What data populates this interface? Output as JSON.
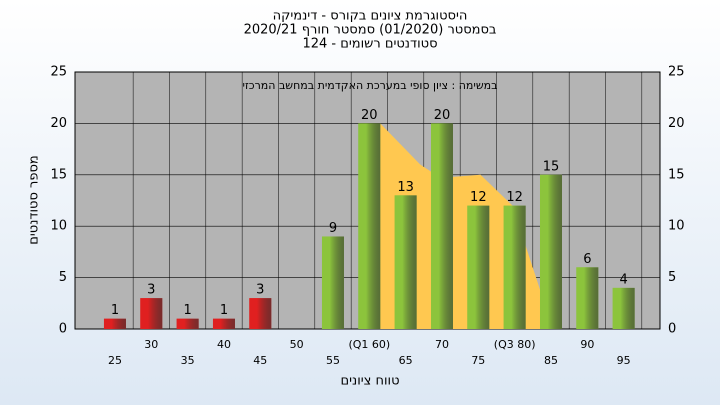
{
  "chart_data": {
    "type": "bar",
    "title": "היסטוגרמת ציונים בקורס - דינמיקה",
    "subtitle": "בסמסטר  (01/2020)  סמסטר חורף 2020/21",
    "subtitle2": "סטודנטים רשומים - 124",
    "annotation": "במשימה : ציון סופי במערכת האקדמית במחשב המרכזי",
    "x_label": "טווח ציונים",
    "y_label": "מספר סטודנטים",
    "x": [
      25,
      30,
      35,
      40,
      45,
      50,
      55,
      60,
      65,
      70,
      75,
      80,
      85,
      90,
      95
    ],
    "values": [
      1,
      3,
      1,
      1,
      3,
      0,
      9,
      20,
      13,
      20,
      12,
      12,
      15,
      6,
      4
    ],
    "colors": [
      "#e02020",
      "#e02020",
      "#e02020",
      "#e02020",
      "#e02020",
      "#e02020",
      "#8cc43c",
      "#8cc43c",
      "#8cc43c",
      "#8cc43c",
      "#8cc43c",
      "#8cc43c",
      "#8cc43c",
      "#8cc43c",
      "#8cc43c"
    ],
    "shading": {
      "color": "#ffc850",
      "x": [
        58.7,
        61.5,
        67,
        69.8,
        75.3,
        79.7,
        83.5,
        83.5
      ],
      "values": [
        0,
        20,
        16,
        14.7,
        15,
        12,
        3.8,
        0
      ]
    },
    "xlim": [
      19.5,
      100
    ],
    "xticks": [
      25,
      30,
      35,
      40,
      45,
      50,
      55,
      {
        "value": 60,
        "label": "(Q1 60)"
      },
      65,
      70,
      75,
      {
        "value": 80,
        "label": "(Q3 80)"
      },
      85,
      90,
      95
    ],
    "ylim": [
      0,
      25
    ],
    "yticks": [
      0,
      5,
      10,
      15,
      20,
      25
    ],
    "grid": true,
    "plot_background": "#b4b4b4"
  }
}
